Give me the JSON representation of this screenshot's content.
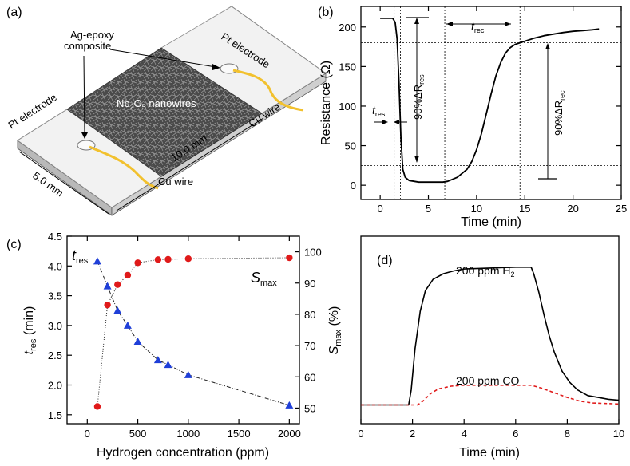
{
  "panel_labels": [
    "(a)",
    "(b)",
    "(c)",
    "(d)"
  ],
  "device": {
    "labels": {
      "pt_left": "Pt electrode",
      "pt_right": "Pt electrode",
      "ag_epoxy_1": "Ag-epoxy",
      "ag_epoxy_2": "composite",
      "nanowires_main": "Nb",
      "nanowires_sub1": "2",
      "nanowires_mid": "O",
      "nanowires_sub2": "5",
      "nanowires_end": " nanowires",
      "cu_left": "Cu wire",
      "cu_right": "Cu wire",
      "dim_width": "5.0 mm",
      "dim_length": "10.0 mm"
    },
    "colors": {
      "substrate": "#e6e6e6",
      "electrode": "#f2f2f2",
      "wire": "#f2c12e",
      "film": "#4a4a4a"
    }
  },
  "chart_data": [
    {
      "type": "line",
      "panel": "(b)",
      "xlabel": "Time (min)",
      "ylabel": "Resistance (Ω)",
      "xlim": [
        -2,
        25
      ],
      "ylim": [
        -18,
        226
      ],
      "xticks": [
        0,
        5,
        10,
        15,
        20,
        25
      ],
      "yticks": [
        0,
        50,
        100,
        150,
        200
      ],
      "series": [
        {
          "name": "Resistance",
          "color": "#000000",
          "x": [
            0,
            1.3,
            1.55,
            1.75,
            1.95,
            2.15,
            2.35,
            2.6,
            3,
            4,
            5,
            6,
            6.5,
            7,
            8,
            9,
            9.5,
            10,
            10.5,
            11,
            11.5,
            12,
            12.5,
            13,
            13.5,
            14,
            14.5,
            15,
            16,
            17,
            18,
            19,
            20,
            21,
            22,
            22.7
          ],
          "y": [
            211,
            211,
            206,
            185,
            130,
            60,
            20,
            10,
            6,
            4,
            4,
            4,
            4,
            5,
            10,
            20,
            30,
            45,
            65,
            90,
            115,
            138,
            155,
            167,
            174,
            178,
            180,
            182,
            186,
            189,
            191,
            193,
            194.5,
            195.5,
            196.5,
            197.5
          ]
        }
      ],
      "annotations": {
        "t_res": "t",
        "t_res_sub": "res",
        "t_rec": "t",
        "t_rec_sub": "rec",
        "dR_res": "90%ΔR",
        "dR_res_sub": "res",
        "dR_rec": "90%ΔR",
        "dR_rec_sub": "rec"
      },
      "vlines_x": [
        1.45,
        2.1,
        6.7,
        14.5
      ],
      "hlines_y": [
        180,
        25
      ]
    },
    {
      "type": "scatter",
      "panel": "(c)",
      "xlabel": "Hydrogen concentration (ppm)",
      "ylabel_left": "t",
      "ylabel_left_sub": "res",
      "ylabel_left_unit": " (min)",
      "ylabel_right": "S",
      "ylabel_right_sub": "max",
      "ylabel_right_unit": " (%)",
      "xlim": [
        -200,
        2100
      ],
      "ylim_left": [
        1.35,
        4.5
      ],
      "ylim_right": [
        45,
        105
      ],
      "xticks": [
        0,
        500,
        1000,
        1500,
        2000
      ],
      "yticks_left": [
        1.5,
        2.0,
        2.5,
        3.0,
        3.5,
        4.0,
        4.5
      ],
      "yticks_right": [
        50,
        60,
        70,
        80,
        90,
        100
      ],
      "label_t_res": "t",
      "label_t_res_sub": "res",
      "label_s_max": "S",
      "label_s_max_sub": "max",
      "series": [
        {
          "name": "t_res",
          "axis": "left",
          "marker": "triangle",
          "color": "#1f3fd8",
          "x": [
            100,
            200,
            300,
            400,
            500,
            700,
            800,
            1000,
            2000
          ],
          "y": [
            4.08,
            3.66,
            3.25,
            3.0,
            2.73,
            2.42,
            2.34,
            2.17,
            1.66
          ]
        },
        {
          "name": "S_max",
          "axis": "right",
          "marker": "circle",
          "color": "#e01a1a",
          "x": [
            100,
            200,
            300,
            400,
            500,
            700,
            800,
            1000,
            2000
          ],
          "y": [
            50.5,
            83,
            89.5,
            92.5,
            96.5,
            97.5,
            97.6,
            97.8,
            98.1
          ]
        }
      ]
    },
    {
      "type": "line",
      "panel": "(d)",
      "xlabel": "Time (min)",
      "ylabel": "",
      "xlim": [
        0,
        10
      ],
      "ylim": [
        0,
        100
      ],
      "xticks": [
        0,
        2,
        4,
        6,
        8,
        10
      ],
      "label_h2": "200 ppm H",
      "label_h2_sub": "2",
      "label_co": "200 ppm CO",
      "series": [
        {
          "name": "200 ppm H2",
          "color": "#000000",
          "dash": "",
          "x": [
            0,
            1.85,
            1.95,
            2.1,
            2.3,
            2.5,
            2.8,
            3.2,
            3.6,
            4.0,
            5.0,
            6.0,
            6.6,
            6.7,
            6.9,
            7.1,
            7.3,
            7.5,
            7.8,
            8.1,
            8.4,
            8.8,
            9.2,
            9.6,
            10
          ],
          "y": [
            10,
            10,
            18,
            40,
            60,
            71,
            77,
            80,
            81.5,
            82.5,
            83,
            83.5,
            83.5,
            80,
            70,
            58,
            47,
            38,
            28,
            22,
            18,
            15,
            14,
            13,
            12.5
          ]
        },
        {
          "name": "200 ppm CO",
          "color": "#e01a1a",
          "dash": "4,3",
          "x": [
            0,
            2.2,
            2.4,
            2.7,
            3.0,
            3.5,
            4.0,
            5.0,
            6.0,
            6.6,
            7.0,
            7.5,
            8.0,
            8.5,
            9.0,
            10
          ],
          "y": [
            10,
            10,
            12,
            16,
            18.5,
            20,
            20.5,
            20.5,
            20.5,
            20.5,
            19,
            16.5,
            14,
            12,
            11,
            10.5
          ]
        }
      ]
    }
  ]
}
